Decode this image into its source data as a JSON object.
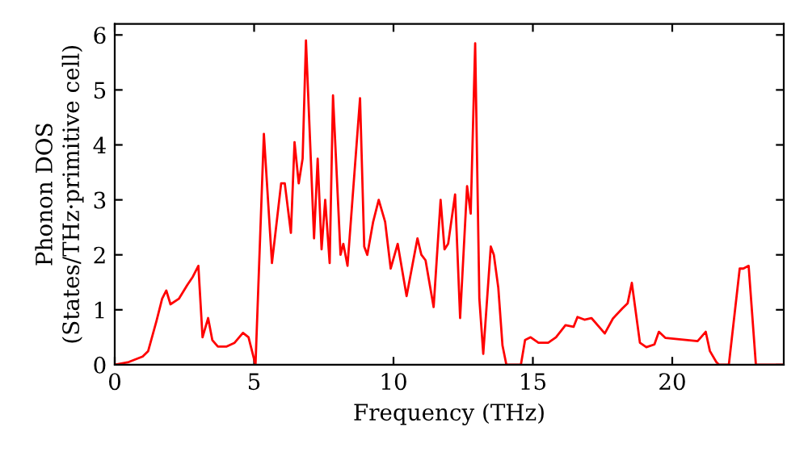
{
  "chart_data": {
    "type": "line",
    "xlabel": "Frequency (THz)",
    "ylabel": "Phonon DOS\n(States/THz·primitive cell)",
    "xlim": [
      0,
      24
    ],
    "ylim": [
      0,
      6.2
    ],
    "xticks": [
      0,
      5,
      10,
      15,
      20
    ],
    "yticks": [
      0,
      1,
      2,
      3,
      4,
      5,
      6
    ],
    "grid": false,
    "line_style": "solid",
    "series": [
      {
        "color": "#ff0000",
        "x": [
          0,
          0.5,
          1.0,
          1.2,
          1.5,
          1.7,
          1.85,
          2.0,
          2.3,
          2.6,
          2.8,
          3.0,
          3.15,
          3.35,
          3.5,
          3.7,
          4.0,
          4.3,
          4.6,
          4.8,
          5.0,
          5.05,
          5.35,
          5.64,
          5.97,
          6.1,
          6.32,
          6.45,
          6.6,
          6.74,
          6.86,
          7.15,
          7.28,
          7.42,
          7.55,
          7.71,
          7.83,
          8.1,
          8.2,
          8.35,
          8.8,
          8.95,
          9.06,
          9.27,
          9.47,
          9.7,
          9.9,
          10.15,
          10.47,
          10.86,
          11.0,
          11.15,
          11.44,
          11.69,
          11.83,
          11.96,
          12.21,
          12.39,
          12.64,
          12.77,
          12.93,
          13.08,
          13.22,
          13.49,
          13.6,
          13.76,
          13.91,
          14.05,
          14.57,
          14.72,
          14.92,
          15.2,
          15.55,
          15.83,
          16.17,
          16.46,
          16.6,
          16.85,
          17.1,
          17.58,
          17.87,
          18.2,
          18.4,
          18.55,
          18.84,
          19.07,
          19.36,
          19.52,
          19.75,
          20.91,
          21.2,
          21.35,
          21.58,
          21.68,
          22.03,
          22.42,
          22.55,
          22.74,
          23.0,
          24.0
        ],
        "values": [
          0,
          0.05,
          0.15,
          0.25,
          0.8,
          1.2,
          1.35,
          1.1,
          1.2,
          1.45,
          1.6,
          1.8,
          0.5,
          0.85,
          0.45,
          0.33,
          0.33,
          0.4,
          0.58,
          0.5,
          0.1,
          0,
          4.2,
          1.85,
          3.3,
          3.3,
          2.4,
          4.05,
          3.3,
          3.75,
          5.9,
          2.3,
          3.75,
          2.1,
          3.0,
          1.85,
          4.9,
          2.0,
          2.2,
          1.8,
          4.85,
          2.15,
          2.0,
          2.6,
          3.0,
          2.6,
          1.75,
          2.2,
          1.25,
          2.3,
          2.0,
          1.9,
          1.05,
          3.0,
          2.1,
          2.2,
          3.1,
          0.85,
          3.25,
          2.75,
          5.85,
          1.2,
          0.2,
          2.15,
          2.0,
          1.4,
          0.35,
          0,
          0,
          0.45,
          0.5,
          0.4,
          0.4,
          0.5,
          0.72,
          0.69,
          0.87,
          0.82,
          0.85,
          0.57,
          0.84,
          1.02,
          1.12,
          1.49,
          0.4,
          0.32,
          0.37,
          0.6,
          0.49,
          0.43,
          0.6,
          0.25,
          0.05,
          0,
          0,
          1.75,
          1.75,
          1.8,
          0,
          0
        ]
      }
    ]
  }
}
